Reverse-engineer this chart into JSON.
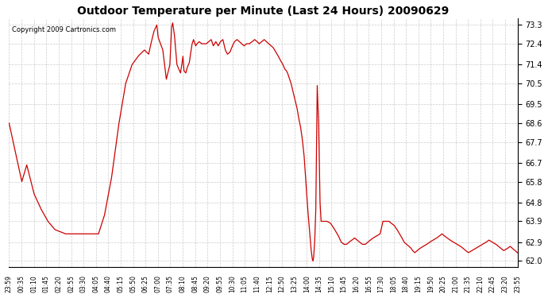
{
  "title": "Outdoor Temperature per Minute (Last 24 Hours) 20090629",
  "copyright": "Copyright 2009 Cartronics.com",
  "line_color": "#cc0000",
  "bg_color": "#ffffff",
  "grid_color": "#cccccc",
  "yticks": [
    62.0,
    62.9,
    63.9,
    64.8,
    65.8,
    66.7,
    67.7,
    68.6,
    69.5,
    70.5,
    71.4,
    72.4,
    73.3
  ],
  "ylim": [
    61.7,
    73.6
  ],
  "xtick_labels": [
    "23:59",
    "00:35",
    "01:10",
    "01:45",
    "02:20",
    "02:55",
    "03:30",
    "04:05",
    "04:40",
    "05:15",
    "05:50",
    "06:25",
    "07:00",
    "07:35",
    "08:10",
    "08:45",
    "09:20",
    "09:55",
    "10:30",
    "11:05",
    "11:40",
    "12:15",
    "12:50",
    "13:25",
    "14:00",
    "14:35",
    "15:10",
    "15:45",
    "16:20",
    "16:55",
    "17:30",
    "18:05",
    "18:40",
    "19:15",
    "19:50",
    "20:25",
    "21:00",
    "21:35",
    "22:10",
    "22:45",
    "23:20",
    "23:55"
  ],
  "key_points": [
    [
      0,
      68.6
    ],
    [
      36,
      65.8
    ],
    [
      50,
      66.6
    ],
    [
      71,
      65.2
    ],
    [
      90,
      64.5
    ],
    [
      110,
      63.9
    ],
    [
      130,
      63.5
    ],
    [
      160,
      63.3
    ],
    [
      195,
      63.3
    ],
    [
      230,
      63.3
    ],
    [
      253,
      63.3
    ],
    [
      270,
      64.2
    ],
    [
      290,
      66.0
    ],
    [
      310,
      68.5
    ],
    [
      330,
      70.5
    ],
    [
      348,
      71.4
    ],
    [
      365,
      71.8
    ],
    [
      383,
      72.1
    ],
    [
      395,
      71.9
    ],
    [
      400,
      72.3
    ],
    [
      410,
      73.0
    ],
    [
      418,
      73.3
    ],
    [
      422,
      72.7
    ],
    [
      435,
      72.1
    ],
    [
      445,
      70.7
    ],
    [
      455,
      71.4
    ],
    [
      460,
      73.2
    ],
    [
      463,
      73.4
    ],
    [
      468,
      72.8
    ],
    [
      475,
      71.4
    ],
    [
      480,
      71.2
    ],
    [
      485,
      71.0
    ],
    [
      488,
      71.3
    ],
    [
      492,
      71.8
    ],
    [
      495,
      71.1
    ],
    [
      500,
      71.0
    ],
    [
      505,
      71.3
    ],
    [
      510,
      71.5
    ],
    [
      515,
      72.1
    ],
    [
      518,
      72.4
    ],
    [
      522,
      72.6
    ],
    [
      528,
      72.3
    ],
    [
      532,
      72.4
    ],
    [
      538,
      72.5
    ],
    [
      545,
      72.4
    ],
    [
      550,
      72.4
    ],
    [
      558,
      72.4
    ],
    [
      565,
      72.5
    ],
    [
      572,
      72.6
    ],
    [
      578,
      72.3
    ],
    [
      585,
      72.5
    ],
    [
      592,
      72.3
    ],
    [
      598,
      72.5
    ],
    [
      605,
      72.6
    ],
    [
      612,
      72.1
    ],
    [
      618,
      71.9
    ],
    [
      625,
      72.0
    ],
    [
      632,
      72.3
    ],
    [
      638,
      72.5
    ],
    [
      645,
      72.6
    ],
    [
      652,
      72.5
    ],
    [
      658,
      72.4
    ],
    [
      665,
      72.3
    ],
    [
      672,
      72.4
    ],
    [
      680,
      72.4
    ],
    [
      688,
      72.5
    ],
    [
      695,
      72.6
    ],
    [
      702,
      72.5
    ],
    [
      708,
      72.4
    ],
    [
      715,
      72.5
    ],
    [
      722,
      72.6
    ],
    [
      728,
      72.5
    ],
    [
      735,
      72.4
    ],
    [
      742,
      72.3
    ],
    [
      748,
      72.2
    ],
    [
      755,
      72.0
    ],
    [
      762,
      71.8
    ],
    [
      768,
      71.6
    ],
    [
      775,
      71.4
    ],
    [
      780,
      71.2
    ],
    [
      785,
      71.1
    ],
    [
      788,
      71.0
    ],
    [
      792,
      70.8
    ],
    [
      798,
      70.5
    ],
    [
      802,
      70.2
    ],
    [
      808,
      69.8
    ],
    [
      815,
      69.3
    ],
    [
      820,
      68.8
    ],
    [
      825,
      68.4
    ],
    [
      830,
      67.8
    ],
    [
      835,
      67.0
    ],
    [
      840,
      65.8
    ],
    [
      845,
      64.5
    ],
    [
      850,
      63.5
    ],
    [
      855,
      62.5
    ],
    [
      858,
      62.1
    ],
    [
      860,
      62.0
    ],
    [
      862,
      62.2
    ],
    [
      865,
      63.0
    ],
    [
      868,
      64.5
    ],
    [
      872,
      70.4
    ],
    [
      876,
      68.5
    ],
    [
      880,
      64.8
    ],
    [
      883,
      63.9
    ],
    [
      890,
      63.9
    ],
    [
      900,
      63.9
    ],
    [
      910,
      63.8
    ],
    [
      918,
      63.6
    ],
    [
      925,
      63.4
    ],
    [
      932,
      63.2
    ],
    [
      940,
      62.9
    ],
    [
      948,
      62.8
    ],
    [
      955,
      62.8
    ],
    [
      962,
      62.9
    ],
    [
      970,
      63.0
    ],
    [
      978,
      63.1
    ],
    [
      985,
      63.0
    ],
    [
      992,
      62.9
    ],
    [
      1000,
      62.8
    ],
    [
      1008,
      62.8
    ],
    [
      1015,
      62.9
    ],
    [
      1022,
      63.0
    ],
    [
      1030,
      63.1
    ],
    [
      1040,
      63.2
    ],
    [
      1050,
      63.3
    ],
    [
      1058,
      63.9
    ],
    [
      1065,
      63.9
    ],
    [
      1075,
      63.9
    ],
    [
      1082,
      63.8
    ],
    [
      1090,
      63.7
    ],
    [
      1098,
      63.5
    ],
    [
      1105,
      63.3
    ],
    [
      1112,
      63.1
    ],
    [
      1118,
      62.9
    ],
    [
      1125,
      62.8
    ],
    [
      1132,
      62.7
    ],
    [
      1138,
      62.6
    ],
    [
      1142,
      62.5
    ],
    [
      1148,
      62.4
    ],
    [
      1155,
      62.5
    ],
    [
      1162,
      62.6
    ],
    [
      1172,
      62.7
    ],
    [
      1182,
      62.8
    ],
    [
      1190,
      62.9
    ],
    [
      1200,
      63.0
    ],
    [
      1210,
      63.1
    ],
    [
      1218,
      63.2
    ],
    [
      1225,
      63.3
    ],
    [
      1232,
      63.2
    ],
    [
      1240,
      63.1
    ],
    [
      1248,
      63.0
    ],
    [
      1258,
      62.9
    ],
    [
      1268,
      62.8
    ],
    [
      1278,
      62.7
    ],
    [
      1285,
      62.6
    ],
    [
      1292,
      62.5
    ],
    [
      1300,
      62.4
    ],
    [
      1310,
      62.5
    ],
    [
      1320,
      62.6
    ],
    [
      1330,
      62.7
    ],
    [
      1340,
      62.8
    ],
    [
      1350,
      62.9
    ],
    [
      1358,
      63.0
    ],
    [
      1368,
      62.9
    ],
    [
      1378,
      62.8
    ],
    [
      1385,
      62.7
    ],
    [
      1392,
      62.6
    ],
    [
      1400,
      62.5
    ],
    [
      1410,
      62.6
    ],
    [
      1418,
      62.7
    ],
    [
      1425,
      62.6
    ],
    [
      1432,
      62.5
    ],
    [
      1438,
      62.4
    ],
    [
      1439,
      62.4
    ]
  ],
  "n_points": 1440
}
